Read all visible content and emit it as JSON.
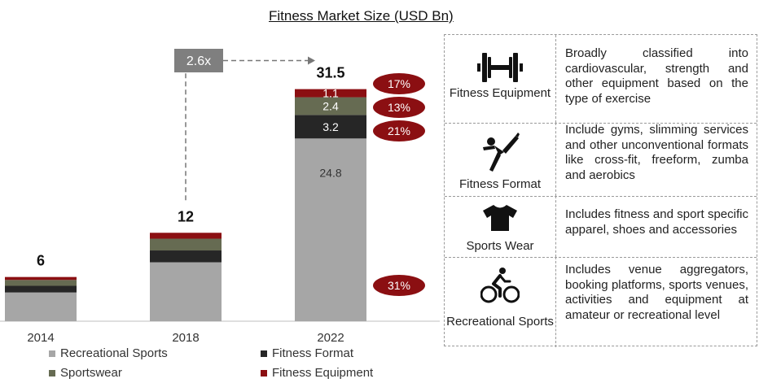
{
  "title": "Fitness Market Size (USD Bn)",
  "chart_data": {
    "type": "bar",
    "stacked": true,
    "categories": [
      "2014",
      "2018",
      "2022"
    ],
    "totals": [
      "6",
      "12",
      "31.5"
    ],
    "series": [
      {
        "name": "Recreational Sports",
        "color": "#a6a6a6",
        "values": [
          3.9,
          8.0,
          24.8
        ]
      },
      {
        "name": "Fitness Format",
        "color": "#262626",
        "values": [
          0.9,
          1.6,
          3.2
        ]
      },
      {
        "name": "Sportswear",
        "color": "#666b52",
        "values": [
          0.8,
          1.6,
          2.4
        ]
      },
      {
        "name": "Fitness Equipment",
        "color": "#8b0f12",
        "values": [
          0.4,
          0.8,
          1.1
        ]
      }
    ],
    "data_labels_2022": [
      "24.8",
      "3.2",
      "2.4",
      "1.1"
    ],
    "cagr_badges": [
      "17%",
      "13%",
      "21%",
      "31%"
    ],
    "growth_multiple": "2.6x",
    "ylim": [
      0,
      33
    ],
    "legend_position": "bottom"
  },
  "legend": {
    "recreational": "Recreational Sports",
    "format": "Fitness Format",
    "sportswear": "Sportswear",
    "equipment": "Fitness Equipment"
  },
  "panel": {
    "rows": [
      {
        "caption": "Fitness Equipment",
        "icon": "dumbbell-icon",
        "description": "Broadly classified into cardiovascular, strength and other equipment based on the type of exercise"
      },
      {
        "caption": "Fitness Format",
        "icon": "yoga-pose-icon",
        "description": "Include gyms, slimming services and other unconventional formats like cross-fit, freeform, zumba and aerobics"
      },
      {
        "caption": "Sports Wear",
        "icon": "tshirt-icon",
        "description": "Includes fitness and sport specific apparel, shoes and accessories"
      },
      {
        "caption": "Recreational Sports",
        "icon": "cyclist-icon",
        "description": "Includes venue aggregators, booking platforms, sports venues, activities and equipment at amateur or recreational level"
      }
    ]
  }
}
